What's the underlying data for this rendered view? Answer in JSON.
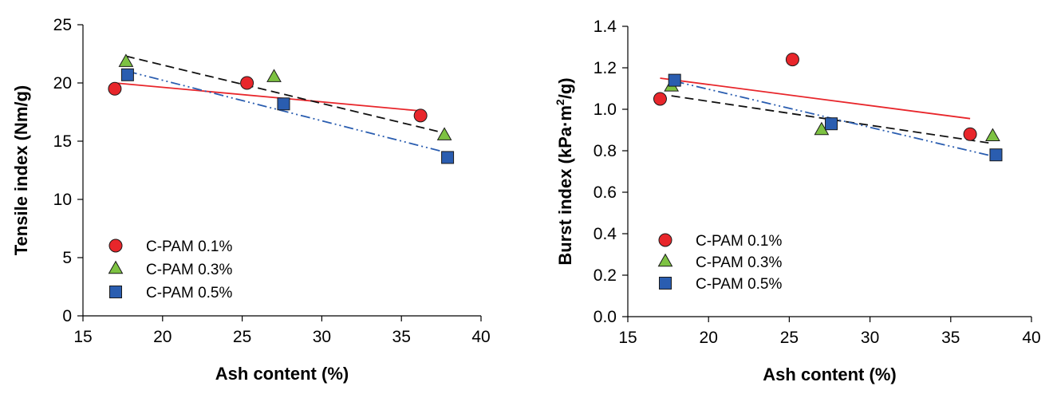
{
  "chart_data": [
    {
      "type": "scatter",
      "xlabel": "Ash content (%)",
      "ylabel": "Tensile index (Nm/g)",
      "ylabel_parts": [],
      "xlim": [
        15,
        40
      ],
      "ylim": [
        0,
        25
      ],
      "xticks": [
        15,
        20,
        25,
        30,
        35,
        40
      ],
      "yticks": [
        0,
        5,
        10,
        15,
        20,
        25
      ],
      "ytick_labels": [
        "0",
        "5",
        "10",
        "15",
        "20",
        "25"
      ],
      "grid": false,
      "legend_position": "bottom-left",
      "series": [
        {
          "name": "C-PAM 0.1%",
          "marker": "circle",
          "color": "#e8262b",
          "line_color": "#e8262b",
          "line_style": "solid",
          "x": [
            17.0,
            25.3,
            36.2
          ],
          "y": [
            19.5,
            20.0,
            17.2
          ],
          "fit": [
            [
              17.0,
              20.0
            ],
            [
              36.2,
              17.6
            ]
          ]
        },
        {
          "name": "C-PAM 0.3%",
          "marker": "triangle",
          "color": "#7dc242",
          "line_color": "#111111",
          "line_style": "dashed",
          "x": [
            17.7,
            27.0,
            37.7
          ],
          "y": [
            21.8,
            20.5,
            15.5
          ],
          "fit": [
            [
              17.7,
              22.3
            ],
            [
              37.7,
              15.7
            ]
          ]
        },
        {
          "name": "C-PAM 0.5%",
          "marker": "square",
          "color": "#2a5db0",
          "line_color": "#2a5db0",
          "line_style": "dashdotdot",
          "x": [
            17.8,
            27.6,
            37.9
          ],
          "y": [
            20.7,
            18.2,
            13.6
          ],
          "fit": [
            [
              17.8,
              21.0
            ],
            [
              37.9,
              14.0
            ]
          ]
        }
      ]
    },
    {
      "type": "scatter",
      "xlabel": "Ash content (%)",
      "ylabel": "Burst index (kPa·m²/g)",
      "ylabel_parts": [
        "Burst index (kPa·m",
        "2",
        "/g)"
      ],
      "xlim": [
        15,
        40
      ],
      "ylim": [
        0,
        1.4
      ],
      "xticks": [
        15,
        20,
        25,
        30,
        35,
        40
      ],
      "yticks": [
        0,
        0.2,
        0.4,
        0.6,
        0.8,
        1.0,
        1.2,
        1.4
      ],
      "ytick_labels": [
        "0.0",
        "0.2",
        "0.4",
        "0.6",
        "0.8",
        "1.0",
        "1.2",
        "1.4"
      ],
      "grid": false,
      "legend_position": "bottom-left",
      "series": [
        {
          "name": "C-PAM 0.1%",
          "marker": "circle",
          "color": "#e8262b",
          "line_color": "#e8262b",
          "line_style": "solid",
          "x": [
            17.0,
            25.2,
            36.2
          ],
          "y": [
            1.05,
            1.24,
            0.88
          ],
          "fit": [
            [
              17.0,
              1.15
            ],
            [
              36.2,
              0.955
            ]
          ]
        },
        {
          "name": "C-PAM 0.3%",
          "marker": "triangle",
          "color": "#7dc242",
          "line_color": "#111111",
          "line_style": "dashed",
          "x": [
            17.7,
            27.0,
            37.6
          ],
          "y": [
            1.11,
            0.9,
            0.87
          ],
          "fit": [
            [
              17.7,
              1.065
            ],
            [
              37.6,
              0.835
            ]
          ]
        },
        {
          "name": "C-PAM 0.5%",
          "marker": "square",
          "color": "#2a5db0",
          "line_color": "#2a5db0",
          "line_style": "dashdotdot",
          "x": [
            17.9,
            27.6,
            37.8
          ],
          "y": [
            1.14,
            0.93,
            0.78
          ],
          "fit": [
            [
              17.9,
              1.135
            ],
            [
              37.8,
              0.77
            ]
          ]
        }
      ]
    }
  ]
}
